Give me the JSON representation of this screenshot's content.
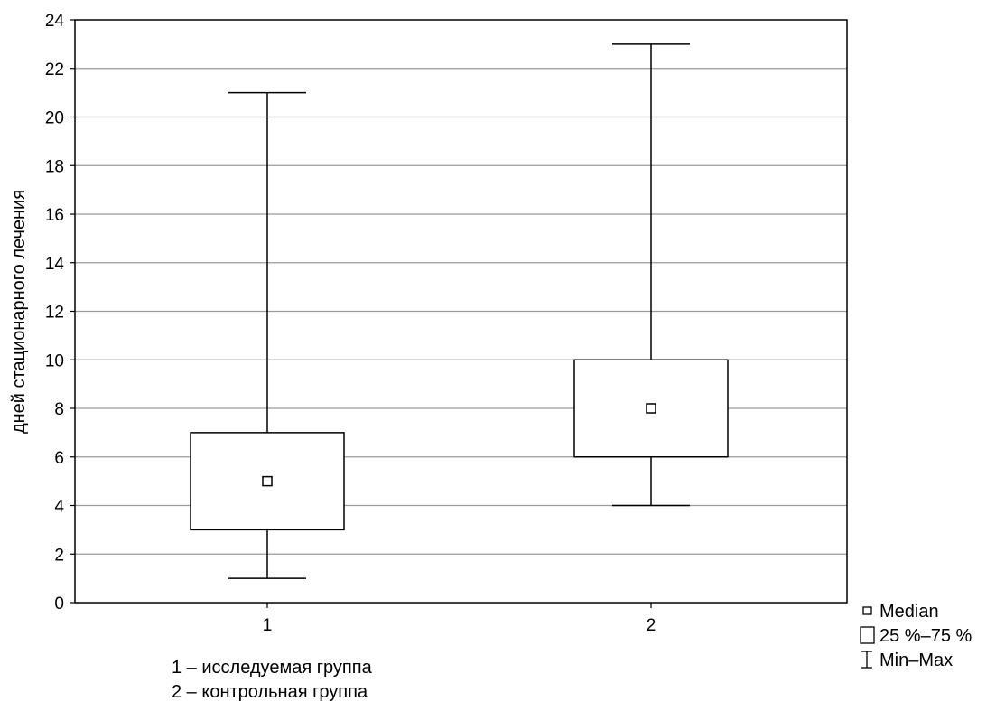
{
  "chart_data": {
    "type": "boxplot",
    "title": "",
    "xlabel": "",
    "ylabel": "дней стационарного лечения",
    "ylim": [
      0,
      24
    ],
    "yticks": [
      0,
      2,
      4,
      6,
      8,
      10,
      12,
      14,
      16,
      18,
      20,
      22,
      24
    ],
    "grid": true,
    "categories": [
      "1",
      "2"
    ],
    "boxes": [
      {
        "category": "1",
        "min": 1,
        "q1": 3,
        "median": 5,
        "q3": 7,
        "max": 21
      },
      {
        "category": "2",
        "min": 4,
        "q1": 6,
        "median": 8,
        "q3": 10,
        "max": 23
      }
    ],
    "legend": {
      "placement": "bottom-right",
      "items": [
        {
          "symbol": "median-marker",
          "label": "Median"
        },
        {
          "symbol": "box",
          "label": "25 %–75 %"
        },
        {
          "symbol": "whisker",
          "label": "Min–Max"
        }
      ]
    },
    "notes": [
      "1 – исследуемая группа",
      "2 – контрольная группа"
    ]
  }
}
